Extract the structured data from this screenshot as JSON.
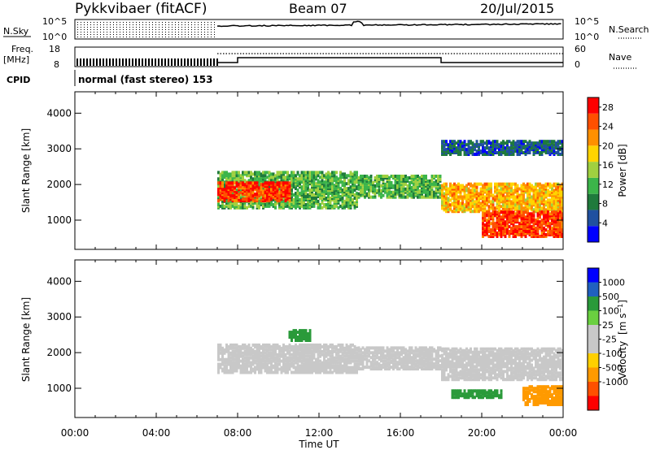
{
  "header": {
    "station": "Pykkvibaer (fitACF)",
    "beam": "Beam 07",
    "date": "20/Jul/2015"
  },
  "top_panels": {
    "nsky_label": "N.Sky",
    "nsky_ticks": [
      "10^5",
      "10^0"
    ],
    "nsearch_label": "N.Search",
    "nsearch_ticks": [
      "10^5",
      "10^0"
    ],
    "freq_label": "Freq.",
    "freq_unit": "[MHz]",
    "freq_ticks": [
      "18",
      "8"
    ],
    "nave_label": "Nave",
    "nave_ticks": [
      "60",
      "0"
    ],
    "cpid_label": "CPID",
    "cpid_text": "normal (fast stereo) 153"
  },
  "colors": {
    "power": [
      "#0000ff",
      "#2050a0",
      "#1f7a3c",
      "#3cb54a",
      "#a0d040",
      "#ffd400",
      "#ff9000",
      "#ff5000",
      "#ff0000"
    ],
    "velocity": [
      "#ff0000",
      "#ff5000",
      "#ff9a00",
      "#ffd000",
      "#c8c8c8",
      "#c8c8c8",
      "#6ad040",
      "#2a9a3a",
      "#2060c0",
      "#0000ff"
    ]
  },
  "chart_data": [
    {
      "type": "heatmap",
      "title": "Power",
      "xlabel": "Time UT",
      "ylabel": "Slant Range [km]",
      "x_ticks": [
        "00:00",
        "04:00",
        "08:00",
        "12:00",
        "16:00",
        "20:00",
        "00:00"
      ],
      "x_range_hours": [
        0,
        24
      ],
      "y_ticks": [
        1000,
        2000,
        3000,
        4000
      ],
      "ylim": [
        180,
        4600
      ],
      "colorbar_label": "Power [dB]",
      "colorbar_ticks": [
        4,
        8,
        12,
        16,
        20,
        24,
        28
      ],
      "colorbar_range": [
        0,
        30
      ],
      "regions": [
        {
          "t": [
            7.0,
            13.8
          ],
          "range_km": [
            1300,
            2300
          ],
          "value": 12
        },
        {
          "t": [
            7.0,
            10.5
          ],
          "range_km": [
            1500,
            2000
          ],
          "value": 26
        },
        {
          "t": [
            13.9,
            18.0
          ],
          "range_km": [
            1600,
            2200
          ],
          "value": 12
        },
        {
          "t": [
            18.0,
            24.0
          ],
          "range_km": [
            1200,
            2000
          ],
          "value": 20
        },
        {
          "t": [
            20.0,
            24.0
          ],
          "range_km": [
            500,
            1200
          ],
          "value": 26
        },
        {
          "t": [
            18.0,
            24.0
          ],
          "range_km": [
            2800,
            3200
          ],
          "value": 6
        }
      ]
    },
    {
      "type": "heatmap",
      "title": "Velocity",
      "xlabel": "Time UT",
      "ylabel": "Slant Range [km]",
      "x_ticks": [
        "00:00",
        "04:00",
        "08:00",
        "12:00",
        "16:00",
        "20:00",
        "00:00"
      ],
      "x_range_hours": [
        0,
        24
      ],
      "y_ticks": [
        1000,
        2000,
        3000,
        4000
      ],
      "ylim": [
        180,
        4600
      ],
      "colorbar_label": "Velocity [m s^-1]",
      "colorbar_ticks": [
        1000,
        500,
        100,
        25,
        -25,
        -100,
        -500,
        -1000
      ],
      "regions": [
        {
          "t": [
            7.0,
            13.8
          ],
          "range_km": [
            1400,
            2200
          ],
          "value": 0
        },
        {
          "t": [
            13.9,
            18.0
          ],
          "range_km": [
            1500,
            2100
          ],
          "value": 0
        },
        {
          "t": [
            18.0,
            24.0
          ],
          "range_km": [
            1200,
            2100
          ],
          "value": 0
        },
        {
          "t": [
            22.0,
            24.0
          ],
          "range_km": [
            500,
            1000
          ],
          "value": -300
        },
        {
          "t": [
            10.5,
            11.5
          ],
          "range_km": [
            2300,
            2600
          ],
          "value": 200
        },
        {
          "t": [
            18.5,
            21.0
          ],
          "range_km": [
            700,
            900
          ],
          "value": 200
        }
      ]
    }
  ]
}
